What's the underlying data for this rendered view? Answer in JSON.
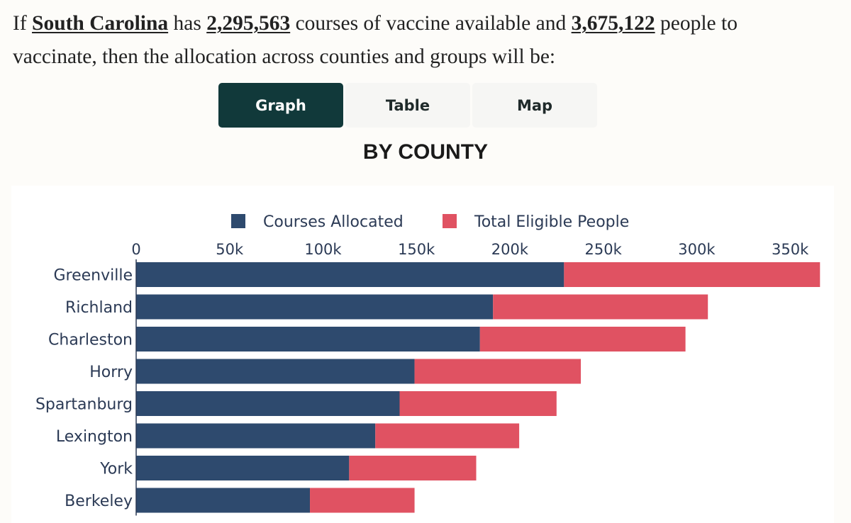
{
  "intro": {
    "prefix": "If ",
    "state": "South Carolina",
    "has": " has ",
    "courses_available": "2,295,563",
    "middle": " courses of vaccine available and ",
    "people_to_vaccinate": "3,675,122",
    "suffix_line1": " people to",
    "line2": "vaccinate, then the allocation across counties and groups will be:"
  },
  "tabs": [
    {
      "label": "Graph",
      "active": true
    },
    {
      "label": "Table",
      "active": false
    },
    {
      "label": "Map",
      "active": false
    }
  ],
  "chart_title": "BY COUNTY",
  "colors": {
    "courses": "#2e4a6e",
    "eligible": "#e05262",
    "active_tab": "#11393a"
  },
  "chart_data": {
    "type": "bar",
    "orientation": "horizontal",
    "stacked": true,
    "title": "BY COUNTY",
    "categories": [
      "Greenville",
      "Richland",
      "Charleston",
      "Horry",
      "Spartanburg",
      "Lexington",
      "York",
      "Berkeley"
    ],
    "series": [
      {
        "name": "Courses Allocated",
        "color": "#2e4a6e",
        "values": [
          229000,
          191000,
          184000,
          149000,
          141000,
          128000,
          114000,
          93000
        ]
      },
      {
        "name": "Total Eligible People",
        "color": "#e05262",
        "values": [
          137000,
          115000,
          110000,
          89000,
          84000,
          77000,
          68000,
          56000
        ]
      }
    ],
    "xlim": [
      0,
      375000
    ],
    "xticks": [
      0,
      50000,
      100000,
      150000,
      200000,
      250000,
      300000,
      350000
    ],
    "xtick_labels": [
      "0",
      "50k",
      "100k",
      "150k",
      "200k",
      "250k",
      "300k",
      "350k"
    ],
    "axis_position": "top",
    "legend_position": "top-center",
    "grid": false
  }
}
